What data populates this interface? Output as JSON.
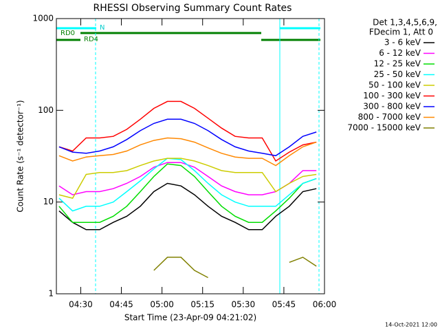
{
  "chart_data": {
    "type": "line",
    "title": "RHESSI Observing Summary Count Rates",
    "xlabel": "Start Time (23-Apr-09 04:21:02)",
    "ylabel": "Count Rate (s⁻¹ detector⁻¹)",
    "legend_header": [
      "Det 1,3,4,5,6,9,",
      "FDecim 1, Att 0"
    ],
    "annotations": [
      "RD0",
      "RD4",
      "N"
    ],
    "footer": "14-Oct-2021 12:00",
    "yscale": "log",
    "ylim": [
      1,
      1000
    ],
    "yticks": [
      1,
      10,
      100,
      1000
    ],
    "xlim": [
      "04:21",
      "06:00"
    ],
    "xticks": [
      "04:30",
      "04:45",
      "05:00",
      "05:15",
      "05:30",
      "05:45",
      "06:00"
    ],
    "legend": "right",
    "x": [
      "04:22",
      "04:27",
      "04:32",
      "04:37",
      "04:42",
      "04:47",
      "04:52",
      "04:57",
      "05:02",
      "05:07",
      "05:12",
      "05:17",
      "05:22",
      "05:27",
      "05:32",
      "05:37",
      "05:42",
      "05:47",
      "05:52",
      "05:57"
    ],
    "series": [
      {
        "name": "3 - 6 keV",
        "color": "#000000",
        "values": [
          8,
          6,
          5,
          5,
          6,
          7,
          9,
          13,
          16,
          15,
          12,
          9,
          7,
          6,
          5,
          5,
          7,
          9,
          13,
          14
        ]
      },
      {
        "name": "6 - 12 keV",
        "color": "#ff00ff",
        "values": [
          15,
          12,
          13,
          13,
          14,
          16,
          19,
          24,
          27,
          27,
          24,
          19,
          15,
          13,
          12,
          12,
          13,
          16,
          22,
          22
        ]
      },
      {
        "name": "12 - 25 keV",
        "color": "#00dd00",
        "values": [
          9,
          6,
          6,
          6,
          7,
          9,
          13,
          19,
          26,
          25,
          19,
          13,
          9,
          7,
          6,
          6,
          8,
          11,
          16,
          18
        ]
      },
      {
        "name": "25 - 50 keV",
        "color": "#00ffff",
        "values": [
          11,
          8,
          9,
          9,
          10,
          13,
          17,
          23,
          30,
          29,
          22,
          16,
          12,
          10,
          9,
          9,
          9,
          12,
          16,
          18
        ]
      },
      {
        "name": "50 - 100 keV",
        "color": "#cccc00",
        "values": [
          12,
          11,
          20,
          21,
          21,
          22,
          25,
          28,
          30,
          30,
          28,
          25,
          22,
          21,
          21,
          21,
          13,
          16,
          19,
          20
        ]
      },
      {
        "name": "100 - 300 keV",
        "color": "#ff0000",
        "values": [
          40,
          36,
          50,
          50,
          52,
          62,
          80,
          105,
          125,
          125,
          105,
          82,
          64,
          52,
          50,
          50,
          28,
          35,
          42,
          45
        ]
      },
      {
        "name": "300 - 800 keV",
        "color": "#0000ff",
        "values": [
          40,
          35,
          34,
          36,
          40,
          48,
          60,
          72,
          80,
          80,
          72,
          60,
          48,
          40,
          36,
          34,
          32,
          40,
          52,
          58
        ]
      },
      {
        "name": "800 - 7000 keV",
        "color": "#ff8800",
        "values": [
          32,
          28,
          31,
          32,
          33,
          36,
          42,
          47,
          50,
          49,
          45,
          39,
          34,
          31,
          30,
          30,
          25,
          32,
          40,
          45
        ]
      },
      {
        "name": "7000 - 15000 keV",
        "color": "#808000",
        "values": [
          null,
          null,
          null,
          null,
          null,
          null,
          null,
          1.8,
          2.5,
          2.5,
          1.8,
          1.5,
          null,
          null,
          null,
          null,
          null,
          2.2,
          2.5,
          2.0
        ]
      }
    ]
  }
}
